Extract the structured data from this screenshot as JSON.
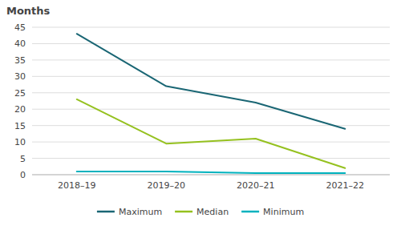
{
  "chart_data": {
    "type": "line",
    "y_label": "Months",
    "categories": [
      "2018–19",
      "2019–20",
      "2020–21",
      "2021–22"
    ],
    "series": [
      {
        "name": "Maximum",
        "color": "#1a6674",
        "values": [
          43,
          27,
          22,
          14
        ]
      },
      {
        "name": "Median",
        "color": "#95c11f",
        "values": [
          23,
          9.5,
          11,
          2
        ]
      },
      {
        "name": "Minimum",
        "color": "#00b2be",
        "values": [
          1,
          1,
          0.5,
          0.5
        ]
      }
    ],
    "ylim": [
      0,
      45
    ],
    "yticks": [
      0,
      5,
      10,
      15,
      20,
      25,
      30,
      35,
      40,
      45
    ],
    "grid": true,
    "legend": "bottom"
  }
}
